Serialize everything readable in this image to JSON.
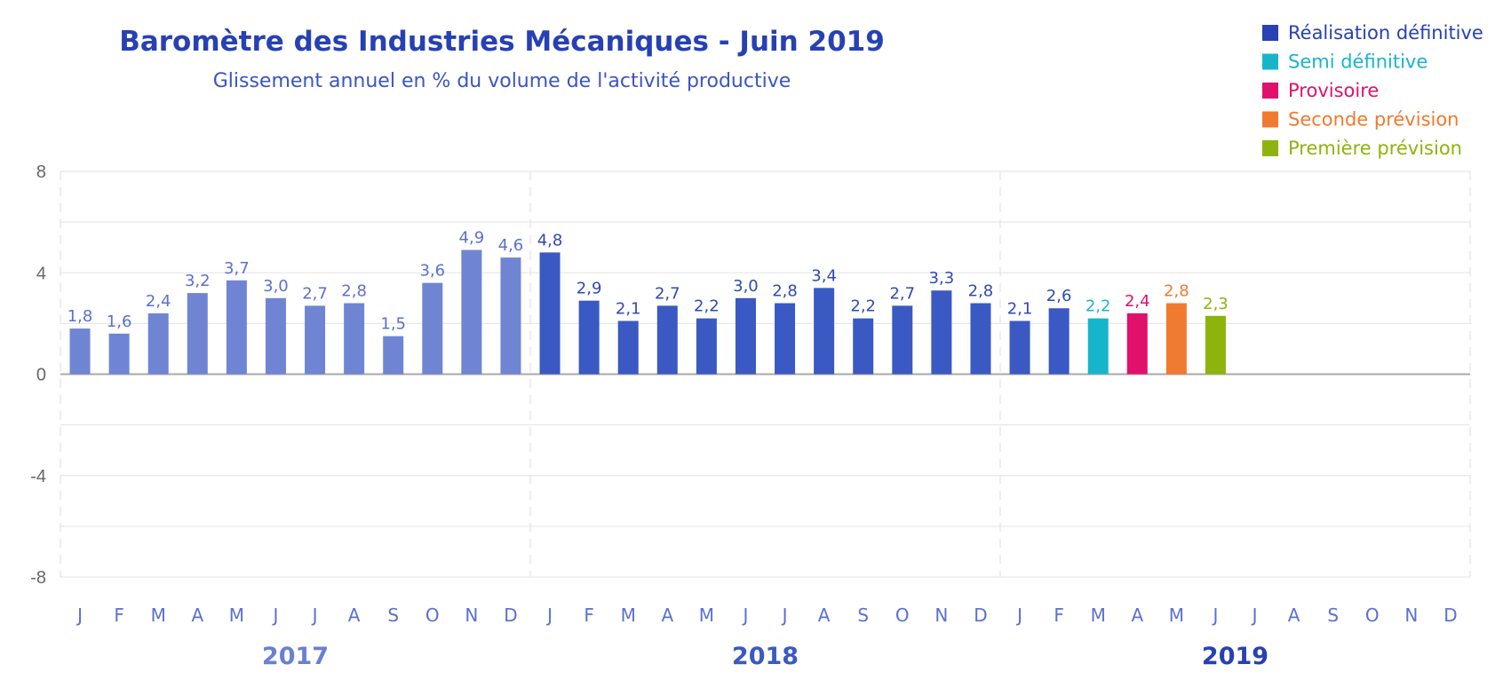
{
  "chart_data": {
    "type": "bar",
    "title": "Baromètre des Industries Mécaniques - Juin 2019",
    "subtitle": "Glissement annuel en % du volume de l'activité productive",
    "ylim": [
      -8,
      8
    ],
    "yticks": [
      8,
      4,
      0,
      -4,
      -8
    ],
    "grid": true,
    "legend_position": "top-right",
    "legend": [
      {
        "key": "def",
        "label": "Réalisation définitive",
        "color": "#2741b3"
      },
      {
        "key": "semi",
        "label": "Semi définitive",
        "color": "#17b5cc"
      },
      {
        "key": "prov",
        "label": "Provisoire",
        "color": "#e0106b"
      },
      {
        "key": "sec",
        "label": "Seconde prévision",
        "color": "#f07a30"
      },
      {
        "key": "prem",
        "label": "Première prévision",
        "color": "#8db40e"
      }
    ],
    "years": [
      {
        "label": "2017",
        "color": "#6a80d2"
      },
      {
        "label": "2018",
        "color": "#3b59c2"
      },
      {
        "label": "2019",
        "color": "#2741b3"
      }
    ],
    "months": [
      "J",
      "F",
      "M",
      "A",
      "M",
      "J",
      "J",
      "A",
      "S",
      "O",
      "N",
      "D",
      "J",
      "F",
      "M",
      "A",
      "M",
      "J",
      "J",
      "A",
      "S",
      "O",
      "N",
      "D",
      "J",
      "F",
      "M",
      "A",
      "M",
      "J",
      "J",
      "A",
      "S",
      "O",
      "N",
      "D"
    ],
    "bars": [
      {
        "value": 1.8,
        "label": "1,8",
        "color": "#6f85d4",
        "label_color": "#5b70cf"
      },
      {
        "value": 1.6,
        "label": "1,6",
        "color": "#6f85d4",
        "label_color": "#5b70cf"
      },
      {
        "value": 2.4,
        "label": "2,4",
        "color": "#6f85d4",
        "label_color": "#5b70cf"
      },
      {
        "value": 3.2,
        "label": "3,2",
        "color": "#6f85d4",
        "label_color": "#5b70cf"
      },
      {
        "value": 3.7,
        "label": "3,7",
        "color": "#6f85d4",
        "label_color": "#5b70cf"
      },
      {
        "value": 3.0,
        "label": "3,0",
        "color": "#6f85d4",
        "label_color": "#5b70cf"
      },
      {
        "value": 2.7,
        "label": "2,7",
        "color": "#6f85d4",
        "label_color": "#5b70cf"
      },
      {
        "value": 2.8,
        "label": "2,8",
        "color": "#6f85d4",
        "label_color": "#5b70cf"
      },
      {
        "value": 1.5,
        "label": "1,5",
        "color": "#6f85d4",
        "label_color": "#5b70cf"
      },
      {
        "value": 3.6,
        "label": "3,6",
        "color": "#6f85d4",
        "label_color": "#5b70cf"
      },
      {
        "value": 4.9,
        "label": "4,9",
        "color": "#6f85d4",
        "label_color": "#5b70cf"
      },
      {
        "value": 4.6,
        "label": "4,6",
        "color": "#6f85d4",
        "label_color": "#5b70cf"
      },
      {
        "value": 4.8,
        "label": "4,8",
        "color": "#3b59c2",
        "label_color": "#2f49b4"
      },
      {
        "value": 2.9,
        "label": "2,9",
        "color": "#3b59c2",
        "label_color": "#2f49b4"
      },
      {
        "value": 2.1,
        "label": "2,1",
        "color": "#3b59c2",
        "label_color": "#2f49b4"
      },
      {
        "value": 2.7,
        "label": "2,7",
        "color": "#3b59c2",
        "label_color": "#2f49b4"
      },
      {
        "value": 2.2,
        "label": "2,2",
        "color": "#3b59c2",
        "label_color": "#2f49b4"
      },
      {
        "value": 3.0,
        "label": "3,0",
        "color": "#3b59c2",
        "label_color": "#2f49b4"
      },
      {
        "value": 2.8,
        "label": "2,8",
        "color": "#3b59c2",
        "label_color": "#2f49b4"
      },
      {
        "value": 3.4,
        "label": "3,4",
        "color": "#3b59c2",
        "label_color": "#2f49b4"
      },
      {
        "value": 2.2,
        "label": "2,2",
        "color": "#3b59c2",
        "label_color": "#2f49b4"
      },
      {
        "value": 2.7,
        "label": "2,7",
        "color": "#3b59c2",
        "label_color": "#2f49b4"
      },
      {
        "value": 3.3,
        "label": "3,3",
        "color": "#3b59c2",
        "label_color": "#2f49b4"
      },
      {
        "value": 2.8,
        "label": "2,8",
        "color": "#3b59c2",
        "label_color": "#2f49b4"
      },
      {
        "value": 2.1,
        "label": "2,1",
        "color": "#3b59c2",
        "label_color": "#2f49b4"
      },
      {
        "value": 2.6,
        "label": "2,6",
        "color": "#3b59c2",
        "label_color": "#2f49b4"
      },
      {
        "value": 2.2,
        "label": "2,2",
        "color": "#17b5cc",
        "label_color": "#17b5cc"
      },
      {
        "value": 2.4,
        "label": "2,4",
        "color": "#e0106b",
        "label_color": "#e0106b"
      },
      {
        "value": 2.8,
        "label": "2,8",
        "color": "#f07a30",
        "label_color": "#f07a30"
      },
      {
        "value": 2.3,
        "label": "2,3",
        "color": "#8db40e",
        "label_color": "#8db40e"
      }
    ]
  }
}
